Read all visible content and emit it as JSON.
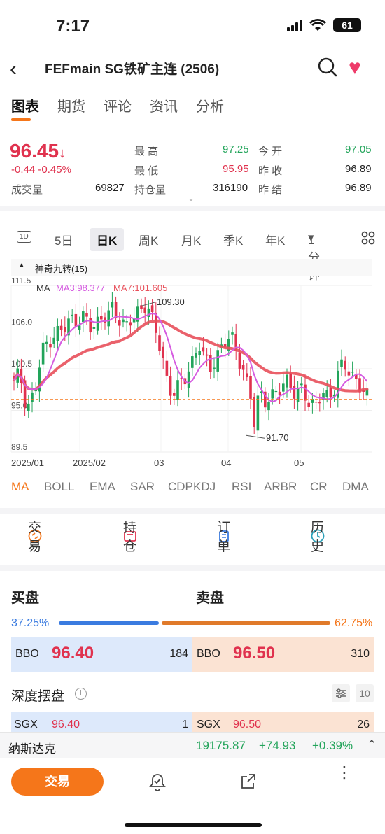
{
  "status_bar": {
    "time": "7:17",
    "battery": "61"
  },
  "header": {
    "title": "FEFmain  SG铁矿主连 (2506)"
  },
  "tabs": [
    {
      "label": "图表",
      "active": true
    },
    {
      "label": "期货",
      "active": false
    },
    {
      "label": "评论",
      "active": false
    },
    {
      "label": "资讯",
      "active": false
    },
    {
      "label": "分析",
      "active": false
    }
  ],
  "quote": {
    "price": "96.45",
    "change": "-0.44",
    "change_pct": "-0.45%",
    "volume_label": "成交量",
    "volume": "69827",
    "high_label": "最  高",
    "high": "97.25",
    "low_label": "最  低",
    "low": "95.95",
    "oi_label": "持仓量",
    "oi": "316190",
    "open_label": "今  开",
    "open": "97.05",
    "prev_close_label": "昨  收",
    "prev_close": "96.89",
    "prev_settle_label": "昨  结",
    "prev_settle": "96.89"
  },
  "periods": [
    "5日",
    "日K",
    "周K",
    "月K",
    "季K",
    "年K",
    "1分钟"
  ],
  "period_1d_icon": "1D",
  "selected_period": "日K",
  "indicator": {
    "name": "神奇九转(15)",
    "ma_label": "MA",
    "ma3": "MA3:98.377",
    "ma7": "MA7:101.605"
  },
  "chart_data": {
    "type": "candlestick",
    "y_ticks": [
      "111.5",
      "106.0",
      "100.5",
      "95.0",
      "89.5"
    ],
    "ylim": [
      89.5,
      111.5
    ],
    "x_ticks": [
      "2025/01",
      "2025/02",
      "03",
      "04",
      "05"
    ],
    "annotations": [
      {
        "label": "109.30"
      },
      {
        "label": "91.70"
      }
    ],
    "last_price": 96.45,
    "colors": {
      "up": "#22a45a",
      "down": "#e0324e",
      "ma_long": "#e8505b",
      "ma_short": "#d55be0",
      "guide": "#f5761a"
    }
  },
  "indicator_tabs": [
    "MA",
    "BOLL",
    "EMA",
    "SAR",
    "CDP",
    "KDJ",
    "RSI",
    "ARBR",
    "CR",
    "DMA"
  ],
  "actions": [
    {
      "label": "交易",
      "icon": "swap-icon"
    },
    {
      "label": "持仓",
      "icon": "briefcase-icon"
    },
    {
      "label": "订单",
      "icon": "clipboard-icon"
    },
    {
      "label": "历史",
      "icon": "clock-icon"
    }
  ],
  "book": {
    "buy_label": "买盘",
    "sell_label": "卖盘",
    "buy_pct": "37.25%",
    "sell_pct": "62.75%",
    "buy_fraction": 0.3725,
    "bbo_label": "BBO",
    "bid": "96.40",
    "bid_size": "184",
    "ask": "96.50",
    "ask_size": "310",
    "depth_label": "深度摆盘",
    "depth_levels": "10",
    "sgx_label": "SGX",
    "sgx_bid": "96.40",
    "sgx_bid_size": "1",
    "sgx_ask": "96.50",
    "sgx_ask_size": "26"
  },
  "ticker": {
    "name": "纳斯达克",
    "value": "19175.87",
    "change": "+74.93",
    "pct": "+0.39%"
  },
  "bottom": {
    "trade_label": "交易"
  }
}
